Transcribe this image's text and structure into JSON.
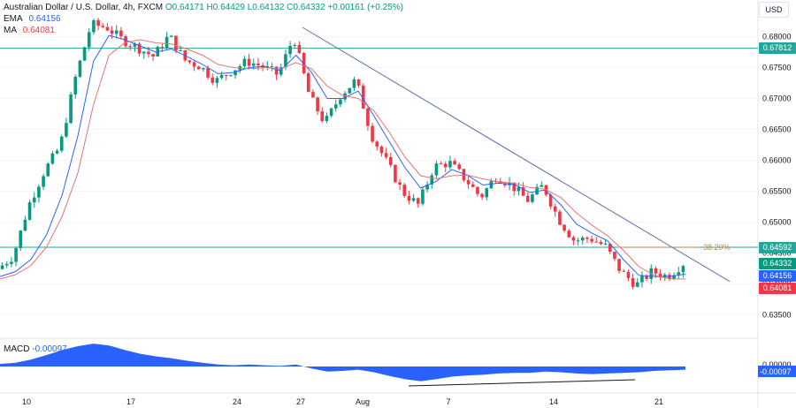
{
  "header": {
    "symbol": "Australian Dollar / U.S. Dollar, 4h, FXCM",
    "ohlc": "O0.64171  H0.64429  L0.64132  C0.64332  +0.00161 (+0.25%)",
    "ema_label": "EMA",
    "ema_value": "0.64156",
    "ma_label": "MA",
    "ma_value": "0.64081"
  },
  "currency_label": "USD",
  "macd": {
    "label": "MACD",
    "value": "-0.00097",
    "axis_tag": "-0.00097",
    "axis_zero": "0.00000"
  },
  "fib_label": "38.20%",
  "colors": {
    "up": "#089981",
    "down": "#f23645",
    "ema": "#2962ff",
    "ma": "#e57373",
    "hline": "#26a69a",
    "trend": "#5b6fa8",
    "fib": "#b38b4d",
    "macd": "#2962ff"
  },
  "price_tags": [
    {
      "name": "tag-level-upper",
      "text": "0.67812",
      "price": 0.67812,
      "color": "#26a69a"
    },
    {
      "name": "tag-level-lower",
      "text": "0.64592",
      "price": 0.64592,
      "color": "#26a69a"
    },
    {
      "name": "tag-close",
      "text": "0.64332",
      "price": 0.64332,
      "color": "#089981"
    },
    {
      "name": "tag-ema",
      "text": "0.64156",
      "price": 0.64156,
      "color": "#2962ff"
    },
    {
      "name": "tag-ma",
      "text": "0.64081",
      "price": 0.64081,
      "color": "#f23645"
    }
  ],
  "chart_data": {
    "type": "candlestick",
    "title": "Australian Dollar / U.S. Dollar, 4h, FXCM",
    "ylim": [
      0.6315,
      0.6855
    ],
    "y_ticks": [
      "0.68000",
      "0.67500",
      "0.67000",
      "0.66500",
      "0.66000",
      "0.65500",
      "0.65000",
      "0.64500",
      "0.64000",
      "0.63500"
    ],
    "x_ticks": [
      "10",
      "17",
      "24",
      "27",
      "Aug",
      "7",
      "14",
      "21"
    ],
    "horizontal_levels": [
      0.67812,
      0.64592
    ],
    "fib_level": {
      "label": "38.20%",
      "price": 0.64592
    },
    "trendline": {
      "from": [
        0.6815,
        0.0
      ],
      "to": [
        0.6404,
        1.0
      ]
    },
    "key_points": [
      0.6424,
      0.6445,
      0.6528,
      0.6583,
      0.6622,
      0.6735,
      0.682,
      0.6815,
      0.6795,
      0.6782,
      0.6768,
      0.6802,
      0.6762,
      0.6752,
      0.6728,
      0.6745,
      0.676,
      0.6752,
      0.6738,
      0.68,
      0.6705,
      0.666,
      0.6705,
      0.673,
      0.664,
      0.6596,
      0.6548,
      0.6528,
      0.659,
      0.6596,
      0.657,
      0.654,
      0.6575,
      0.6559,
      0.6535,
      0.6559,
      0.6505,
      0.647,
      0.6474,
      0.6461,
      0.642,
      0.6398,
      0.642,
      0.6412,
      0.6433
    ],
    "ema": [
      0.6412,
      0.642,
      0.644,
      0.648,
      0.6545,
      0.664,
      0.676,
      0.6802,
      0.6795,
      0.6785,
      0.6775,
      0.678,
      0.6768,
      0.6755,
      0.674,
      0.6742,
      0.675,
      0.6752,
      0.6745,
      0.677,
      0.6742,
      0.67,
      0.67,
      0.6712,
      0.6672,
      0.663,
      0.6588,
      0.6555,
      0.6566,
      0.6585,
      0.6576,
      0.656,
      0.6563,
      0.6561,
      0.6548,
      0.6552,
      0.6528,
      0.6497,
      0.6482,
      0.647,
      0.644,
      0.6414,
      0.6412,
      0.6412,
      0.6416
    ],
    "ma": [
      0.6408,
      0.6415,
      0.643,
      0.646,
      0.651,
      0.658,
      0.669,
      0.677,
      0.679,
      0.6795,
      0.679,
      0.6788,
      0.678,
      0.677,
      0.6755,
      0.675,
      0.6748,
      0.675,
      0.6748,
      0.6758,
      0.6748,
      0.672,
      0.6705,
      0.67,
      0.668,
      0.6645,
      0.6605,
      0.6575,
      0.657,
      0.6575,
      0.6576,
      0.657,
      0.6565,
      0.6563,
      0.6556,
      0.6553,
      0.654,
      0.6515,
      0.6495,
      0.6478,
      0.6455,
      0.6428,
      0.6414,
      0.6408,
      0.6408
    ],
    "macd": [
      0.0008,
      0.0012,
      0.0022,
      0.0036,
      0.0052,
      0.0064,
      0.0072,
      0.0066,
      0.0052,
      0.004,
      0.0032,
      0.0026,
      0.0018,
      0.0012,
      0.0006,
      0.0004,
      0.0006,
      0.0004,
      0.0002,
      0.0006,
      -0.0006,
      -0.0016,
      -0.0014,
      -0.001,
      -0.0018,
      -0.003,
      -0.004,
      -0.0046,
      -0.004,
      -0.0032,
      -0.0028,
      -0.0026,
      -0.0022,
      -0.002,
      -0.002,
      -0.0016,
      -0.0018,
      -0.0022,
      -0.0024,
      -0.0022,
      -0.002,
      -0.0018,
      -0.0014,
      -0.0012,
      -0.001
    ]
  }
}
